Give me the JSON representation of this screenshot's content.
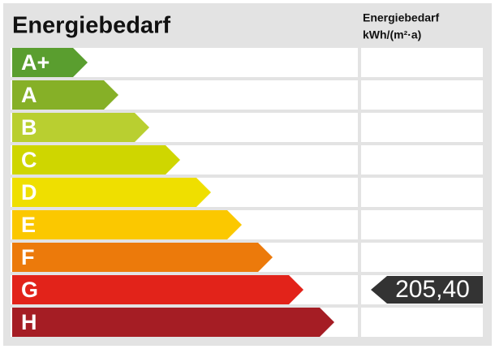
{
  "title": "Energiebedarf",
  "column_header": [
    "Energiebedarf",
    "kWh/(m²·a)"
  ],
  "classes": [
    {
      "label": "A+",
      "color": "#5a9e2f"
    },
    {
      "label": "A",
      "color": "#86b027"
    },
    {
      "label": "B",
      "color": "#b9cf30"
    },
    {
      "label": "C",
      "color": "#cfd600"
    },
    {
      "label": "D",
      "color": "#efdf00"
    },
    {
      "label": "E",
      "color": "#fbc800"
    },
    {
      "label": "F",
      "color": "#ec7a0b"
    },
    {
      "label": "G",
      "color": "#e2231a",
      "value": "205,40"
    },
    {
      "label": "H",
      "color": "#a51d24"
    }
  ]
}
